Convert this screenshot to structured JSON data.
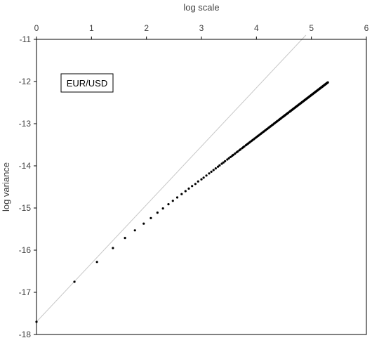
{
  "chart_data": {
    "type": "scatter",
    "title": "",
    "xlabel": "log scale",
    "ylabel": "log variance",
    "xaxis_position": "top",
    "xlim": [
      0,
      6
    ],
    "ylim": [
      -18,
      -11
    ],
    "xticks": [
      "0",
      "1",
      "2",
      "3",
      "4",
      "5",
      "6"
    ],
    "yticks": [
      "-11",
      "-12",
      "-13",
      "-14",
      "-15",
      "-16",
      "-17",
      "-18"
    ],
    "grid": false,
    "legend": {
      "label": "EUR/USD",
      "placement": "top-left"
    },
    "colors": {
      "points": "#000000",
      "reference_line": "#c8c8c8",
      "frame": "#000000",
      "text": "#404040"
    },
    "reference_line": {
      "x": [
        0,
        4.9
      ],
      "y": [
        -17.7,
        -10.9
      ]
    },
    "series": [
      {
        "values_note_free": true,
        "x": [
          0.0,
          0.69,
          1.1,
          1.39,
          1.61,
          1.79,
          1.95,
          2.08,
          2.2,
          2.3,
          2.4,
          2.48,
          2.56,
          2.64,
          2.71,
          2.77,
          2.83,
          2.89,
          2.94,
          3.0,
          3.04,
          3.09,
          3.14,
          3.18,
          3.22,
          3.26,
          3.3,
          3.33,
          3.37,
          3.4,
          3.43,
          3.47,
          3.5,
          3.53,
          3.56,
          3.58,
          3.61,
          3.64,
          3.66,
          3.69,
          3.71,
          3.74,
          3.76,
          3.78,
          3.81,
          3.83,
          3.85,
          3.87,
          3.89,
          3.91,
          3.93,
          3.95,
          3.97,
          3.99,
          4.01,
          4.03,
          4.04,
          4.06,
          4.08,
          4.09,
          4.11,
          4.13,
          4.14,
          4.16,
          4.17,
          4.19,
          4.2,
          4.22,
          4.23,
          4.25,
          4.26,
          4.28,
          4.29,
          4.3,
          4.32,
          4.33,
          4.34,
          4.36,
          4.37,
          4.38,
          4.39,
          4.41,
          4.42,
          4.43,
          4.44,
          4.45,
          4.47,
          4.48,
          4.49,
          4.5,
          4.51,
          4.52,
          4.53,
          4.54,
          4.55,
          4.56,
          4.57,
          4.58,
          4.6,
          4.61,
          4.62,
          4.62,
          4.63,
          4.64,
          4.65,
          4.66,
          4.67,
          4.68,
          4.69,
          4.7,
          4.71,
          4.72,
          4.73,
          4.74,
          4.74,
          4.75,
          4.76,
          4.77,
          4.78,
          4.79,
          4.8,
          4.8,
          4.81,
          4.82,
          4.83,
          4.84,
          4.84,
          4.85,
          4.86,
          4.87,
          4.88,
          4.88,
          4.89,
          4.9,
          4.91,
          4.91,
          4.92,
          4.93,
          4.93,
          4.94,
          4.95,
          4.96,
          4.96,
          4.97,
          4.98,
          4.98,
          4.99,
          5.0,
          5.0,
          5.01,
          5.02,
          5.02,
          5.03,
          5.04,
          5.04,
          5.05,
          5.06,
          5.06,
          5.07,
          5.08,
          5.08,
          5.09,
          5.09,
          5.1,
          5.11,
          5.11,
          5.12,
          5.12,
          5.13,
          5.14,
          5.14,
          5.15,
          5.15,
          5.16,
          5.16,
          5.17,
          5.18,
          5.18,
          5.19,
          5.19,
          5.2,
          5.2,
          5.21,
          5.21,
          5.22,
          5.22,
          5.23,
          5.23,
          5.24,
          5.24,
          5.25,
          5.25,
          5.26,
          5.26,
          5.27,
          5.27,
          5.28,
          5.28,
          5.29,
          5.29,
          5.3
        ],
        "y": [
          -17.7,
          -16.75,
          -16.28,
          -15.95,
          -15.71,
          -15.53,
          -15.37,
          -15.24,
          -15.11,
          -15.01,
          -14.91,
          -14.83,
          -14.75,
          -14.67,
          -14.6,
          -14.54,
          -14.48,
          -14.43,
          -14.37,
          -14.32,
          -14.28,
          -14.23,
          -14.18,
          -14.14,
          -14.1,
          -14.06,
          -14.02,
          -13.99,
          -13.95,
          -13.92,
          -13.89,
          -13.85,
          -13.82,
          -13.79,
          -13.76,
          -13.74,
          -13.71,
          -13.68,
          -13.66,
          -13.63,
          -13.61,
          -13.58,
          -13.56,
          -13.54,
          -13.51,
          -13.49,
          -13.47,
          -13.45,
          -13.43,
          -13.41,
          -13.39,
          -13.37,
          -13.35,
          -13.33,
          -13.31,
          -13.29,
          -13.28,
          -13.26,
          -13.24,
          -13.23,
          -13.21,
          -13.19,
          -13.18,
          -13.16,
          -13.15,
          -13.13,
          -13.12,
          -13.1,
          -13.09,
          -13.07,
          -13.06,
          -13.04,
          -13.03,
          -13.02,
          -13.0,
          -12.99,
          -12.98,
          -12.96,
          -12.95,
          -12.94,
          -12.93,
          -12.91,
          -12.9,
          -12.89,
          -12.88,
          -12.87,
          -12.85,
          -12.84,
          -12.83,
          -12.82,
          -12.81,
          -12.8,
          -12.79,
          -12.78,
          -12.77,
          -12.76,
          -12.75,
          -12.74,
          -12.72,
          -12.71,
          -12.7,
          -12.7,
          -12.69,
          -12.68,
          -12.67,
          -12.66,
          -12.65,
          -12.64,
          -12.63,
          -12.62,
          -12.61,
          -12.6,
          -12.59,
          -12.58,
          -12.58,
          -12.57,
          -12.56,
          -12.55,
          -12.54,
          -12.53,
          -12.52,
          -12.52,
          -12.51,
          -12.5,
          -12.49,
          -12.48,
          -12.48,
          -12.47,
          -12.46,
          -12.45,
          -12.44,
          -12.44,
          -12.43,
          -12.42,
          -12.41,
          -12.41,
          -12.4,
          -12.39,
          -12.39,
          -12.38,
          -12.37,
          -12.36,
          -12.36,
          -12.35,
          -12.34,
          -12.34,
          -12.33,
          -12.32,
          -12.32,
          -12.31,
          -12.3,
          -12.3,
          -12.29,
          -12.28,
          -12.28,
          -12.27,
          -12.26,
          -12.26,
          -12.25,
          -12.24,
          -12.24,
          -12.23,
          -12.23,
          -12.22,
          -12.21,
          -12.21,
          -12.2,
          -12.2,
          -12.19,
          -12.18,
          -12.18,
          -12.17,
          -12.17,
          -12.16,
          -12.16,
          -12.15,
          -12.14,
          -12.14,
          -12.13,
          -12.13,
          -12.12,
          -12.12,
          -12.11,
          -12.11,
          -12.1,
          -12.1,
          -12.09,
          -12.09,
          -12.08,
          -12.08,
          -12.07,
          -12.07,
          -12.06,
          -12.06,
          -12.05,
          -12.05,
          -12.04,
          -12.04,
          -12.03,
          -12.03,
          -12.02
        ]
      }
    ]
  }
}
